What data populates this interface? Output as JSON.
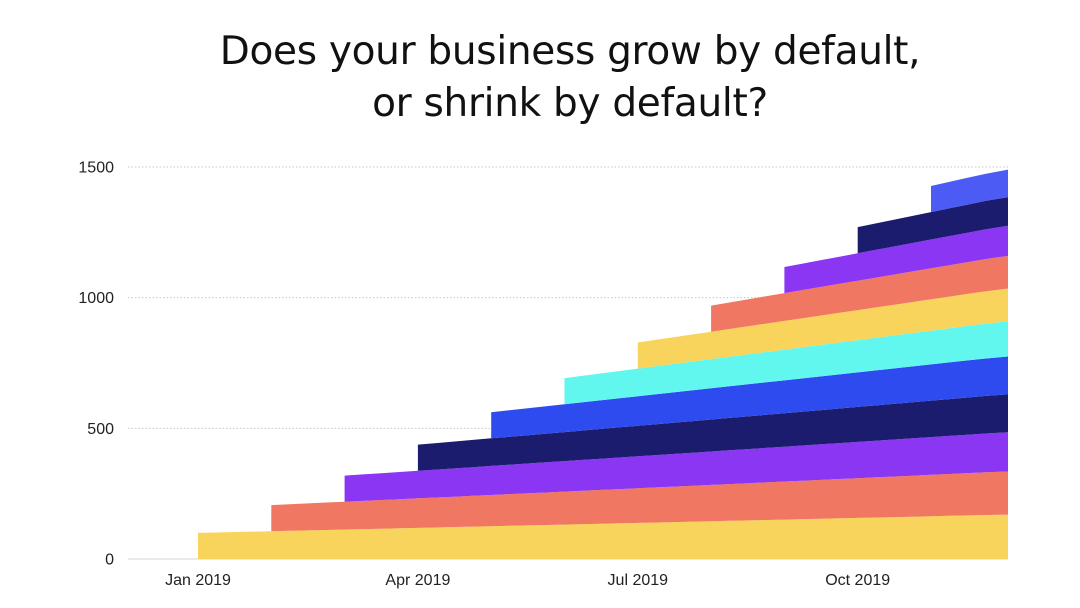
{
  "chart_data": {
    "type": "area",
    "title_lines": [
      "Does your business grow by default,",
      "or shrink by default?"
    ],
    "xlabel": "",
    "ylabel": "",
    "x_ticks": [
      "Jan 2019",
      "Apr 2019",
      "Jul 2019",
      "Oct 2019"
    ],
    "y_ticks": [
      0,
      500,
      1000,
      1500
    ],
    "ylim": [
      0,
      1500
    ],
    "grid": "horizontal-dotted",
    "legend": "none",
    "stacked": true,
    "series": [
      {
        "start": "2019-01",
        "values_at_start": 100,
        "value_at_end": 170,
        "color": "#F9D45C"
      },
      {
        "start": "2019-02",
        "values_at_start": 100,
        "value_at_end": 165,
        "color": "#F07762"
      },
      {
        "start": "2019-03",
        "values_at_start": 100,
        "value_at_end": 150,
        "color": "#8A36F2"
      },
      {
        "start": "2019-04",
        "values_at_start": 100,
        "value_at_end": 145,
        "color": "#1C1C6E"
      },
      {
        "start": "2019-05",
        "values_at_start": 100,
        "value_at_end": 145,
        "color": "#2E4BF0"
      },
      {
        "start": "2019-06",
        "values_at_start": 100,
        "value_at_end": 135,
        "color": "#62F7EE"
      },
      {
        "start": "2019-07",
        "values_at_start": 100,
        "value_at_end": 125,
        "color": "#F9D45C"
      },
      {
        "start": "2019-08",
        "values_at_start": 100,
        "value_at_end": 125,
        "color": "#F07762"
      },
      {
        "start": "2019-09",
        "values_at_start": 100,
        "value_at_end": 115,
        "color": "#8A36F2"
      },
      {
        "start": "2019-10",
        "values_at_start": 100,
        "value_at_end": 110,
        "color": "#1C1C6E"
      },
      {
        "start": "2019-11",
        "values_at_start": 100,
        "value_at_end": 105,
        "color": "#4D5BF5"
      }
    ],
    "x_end": "2019-12"
  }
}
